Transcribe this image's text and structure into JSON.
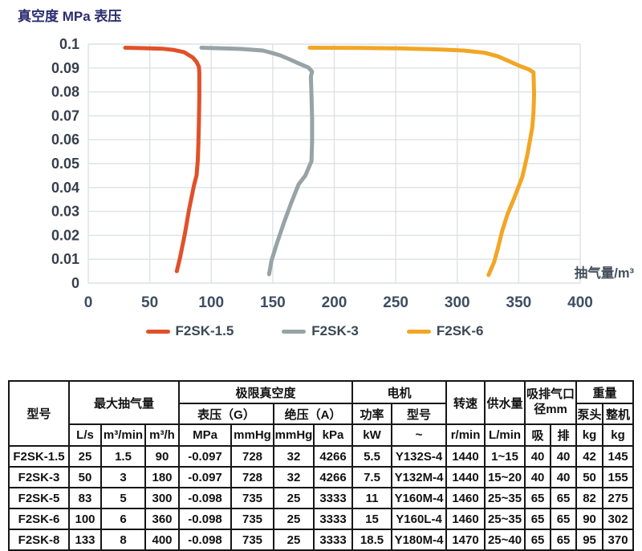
{
  "chart_data": {
    "type": "line",
    "title": "真空度 MPa 表压",
    "xlabel": "抽气量/m³",
    "ylabel": "真空度 MPa 表压",
    "xlim": [
      0,
      400
    ],
    "ylim": [
      0,
      0.1
    ],
    "grid": true,
    "legend_position": "bottom",
    "x_ticks": [
      0,
      50,
      100,
      150,
      200,
      250,
      300,
      350,
      400
    ],
    "x_tick_labels": [
      "0",
      "50",
      "100",
      "150",
      "200",
      "250",
      "300",
      "350",
      "400"
    ],
    "y_ticks": [
      0,
      0.01,
      0.02,
      0.03,
      0.04,
      0.05,
      0.06,
      0.07,
      0.08,
      0.09,
      0.1
    ],
    "y_tick_labels": [
      "0",
      "0.01",
      "0.02",
      "0.03",
      "0.04",
      "0.05",
      "0.06",
      "0.07",
      "0.08",
      "0.09",
      "0.1"
    ],
    "series": [
      {
        "name": "F2SK-1.5",
        "color": "#e0512a",
        "points": [
          [
            30,
            0.0985
          ],
          [
            46,
            0.0983
          ],
          [
            60,
            0.0981
          ],
          [
            70,
            0.0975
          ],
          [
            78,
            0.0966
          ],
          [
            85,
            0.0944
          ],
          [
            88,
            0.0926
          ],
          [
            90,
            0.0905
          ],
          [
            90.3,
            0.088
          ],
          [
            90.3,
            0.078
          ],
          [
            90,
            0.068
          ],
          [
            89.5,
            0.058
          ],
          [
            89,
            0.051
          ],
          [
            88,
            0.045
          ],
          [
            86,
            0.041
          ],
          [
            82,
            0.031
          ],
          [
            78.5,
            0.0205
          ],
          [
            74.5,
            0.0104
          ],
          [
            72,
            0.005
          ]
        ]
      },
      {
        "name": "F2SK-3",
        "color": "#97a3a6",
        "points": [
          [
            92,
            0.0985
          ],
          [
            106,
            0.0983
          ],
          [
            124,
            0.098
          ],
          [
            142,
            0.0973
          ],
          [
            150,
            0.0962
          ],
          [
            156,
            0.0953
          ],
          [
            163,
            0.0938
          ],
          [
            172,
            0.0917
          ],
          [
            179,
            0.0902
          ],
          [
            182,
            0.0885
          ],
          [
            181,
            0.0865
          ],
          [
            181.5,
            0.079
          ],
          [
            182,
            0.069
          ],
          [
            182,
            0.059
          ],
          [
            181.5,
            0.051
          ],
          [
            176.5,
            0.045
          ],
          [
            171,
            0.0413
          ],
          [
            165,
            0.0336
          ],
          [
            159,
            0.0252
          ],
          [
            153.5,
            0.0168
          ],
          [
            149,
            0.0094
          ],
          [
            147,
            0.0037
          ]
        ]
      },
      {
        "name": "F2SK-6",
        "color": "#f2a625",
        "points": [
          [
            180,
            0.0985
          ],
          [
            220,
            0.0984
          ],
          [
            255,
            0.0982
          ],
          [
            285,
            0.0978
          ],
          [
            305,
            0.0973
          ],
          [
            322,
            0.0964
          ],
          [
            333,
            0.0949
          ],
          [
            342,
            0.0929
          ],
          [
            352,
            0.0906
          ],
          [
            358,
            0.0895
          ],
          [
            362,
            0.0882
          ],
          [
            362.5,
            0.079
          ],
          [
            362,
            0.0715
          ],
          [
            361,
            0.065
          ],
          [
            357,
            0.0536
          ],
          [
            353,
            0.0446
          ],
          [
            346,
            0.0351
          ],
          [
            341,
            0.029
          ],
          [
            336.5,
            0.0217
          ],
          [
            333,
            0.0144
          ],
          [
            330,
            0.0088
          ],
          [
            325.5,
            0.0034
          ]
        ]
      }
    ],
    "colors": {
      "grid": "#dce2e7",
      "title_text": "#2b2d6e",
      "x_tick_text": "#3d4e62",
      "y_tick_text": "#363f4c",
      "xlabel_text": "#43505e",
      "legend_text": "#3a4754"
    }
  },
  "table": {
    "header": {
      "model": "型号",
      "max_capacity": "最大抽气量",
      "ultimate_vacuum": "极限真空度",
      "gauge_pressure": "表压（G）",
      "absolute_pressure": "绝压（A）",
      "motor": "电机",
      "power": "功率",
      "motor_model": "型号",
      "speed": "转速",
      "water_supply": "供水量",
      "port_diameter": "吸排气口\n径mm",
      "weight": "重量",
      "pump_head": "泵头",
      "complete_machine": "整机",
      "units": [
        "L/s",
        "m³/min",
        "m³/h",
        "MPa",
        "mmHg",
        "mmHg",
        "kPa",
        "kW",
        "~",
        "r/min",
        "L/min",
        "吸",
        "排",
        "kg",
        "kg"
      ]
    },
    "rows": [
      [
        "F2SK-1.5",
        "25",
        "1.5",
        "90",
        "-0.097",
        "728",
        "32",
        "4266",
        "5.5",
        "Y132S-4",
        "1440",
        "1~15",
        "40",
        "40",
        "42",
        "145"
      ],
      [
        "F2SK-3",
        "50",
        "3",
        "180",
        "-0.097",
        "728",
        "32",
        "4266",
        "7.5",
        "Y132M-4",
        "1440",
        "15~20",
        "40",
        "40",
        "50",
        "155"
      ],
      [
        "F2SK-5",
        "83",
        "5",
        "300",
        "-0.098",
        "735",
        "25",
        "3333",
        "11",
        "Y160M-4",
        "1460",
        "25~35",
        "65",
        "65",
        "82",
        "275"
      ],
      [
        "F2SK-6",
        "100",
        "6",
        "360",
        "-0.098",
        "735",
        "25",
        "3333",
        "15",
        "Y160L-4",
        "1460",
        "25~35",
        "65",
        "65",
        "90",
        "302"
      ],
      [
        "F2SK-8",
        "133",
        "8",
        "400",
        "-0.098",
        "735",
        "25",
        "3333",
        "18.5",
        "Y180M-4",
        "1470",
        "25~40",
        "65",
        "65",
        "95",
        "370"
      ]
    ],
    "colors": {
      "border": "#161616",
      "text": "#111111"
    }
  }
}
